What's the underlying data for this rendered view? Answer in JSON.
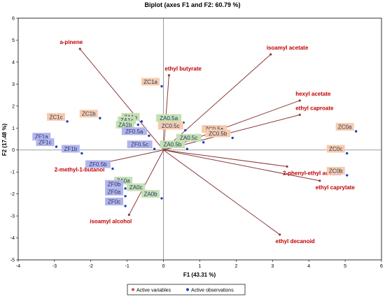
{
  "chart_data": {
    "type": "scatter",
    "title": "Biplot (axes F1 and F2: 60.79 %)",
    "xlabel": "F1 (43.31 %)",
    "ylabel": "F2 (17.48 %)",
    "xlim": [
      -4,
      6
    ],
    "ylim": [
      -5,
      6
    ],
    "xticks": [
      -4,
      -3,
      -2,
      -1,
      0,
      1,
      2,
      3,
      4,
      5,
      6
    ],
    "yticks": [
      -5,
      -4,
      -3,
      -2,
      -1,
      0,
      1,
      2,
      3,
      4,
      5,
      6
    ],
    "grid": false,
    "legend_position": "bottom",
    "legend": [
      {
        "label": "Active variables",
        "color": "#c0504d"
      },
      {
        "label": "Active observations",
        "color": "#1f3fbf"
      }
    ],
    "variables": [
      {
        "name": "a-pinene",
        "x": -2.3,
        "y": 4.6
      },
      {
        "name": "ethyl butyrate",
        "x": 0.15,
        "y": 3.4
      },
      {
        "name": "isoamyl acetate",
        "x": 2.95,
        "y": 4.35
      },
      {
        "name": "hexyl acetate",
        "x": 3.75,
        "y": 2.25
      },
      {
        "name": "ethyl caproate",
        "x": 3.75,
        "y": 1.6
      },
      {
        "name": "2-methyl-1-butanol",
        "x": -1.7,
        "y": -0.6
      },
      {
        "name": "2-phenyl-ethyl acetate",
        "x": 3.4,
        "y": -0.75
      },
      {
        "name": "ethyl caprylate",
        "x": 4.3,
        "y": -1.4
      },
      {
        "name": "isoamyl alcohol",
        "x": -0.95,
        "y": -2.95
      },
      {
        "name": "ethyl decanoid",
        "x": 3.2,
        "y": -3.85
      }
    ],
    "observations": [
      {
        "name": "ZC1a",
        "x": -0.05,
        "y": 2.9
      },
      {
        "name": "ZC1b",
        "x": -1.75,
        "y": 1.45
      },
      {
        "name": "ZC1c",
        "x": -2.65,
        "y": 1.3
      },
      {
        "name": "ZA1a",
        "x": -0.6,
        "y": 1.3
      },
      {
        "name": "ZA1c",
        "x": -0.7,
        "y": 1.15
      },
      {
        "name": "ZA1b",
        "x": -0.75,
        "y": 0.95
      },
      {
        "name": "ZF1a",
        "x": -3.05,
        "y": 0.4
      },
      {
        "name": "ZF1c",
        "x": -2.95,
        "y": 0.15
      },
      {
        "name": "ZF1b",
        "x": -2.25,
        "y": -0.15
      },
      {
        "name": "ZA0.5a",
        "x": 0.55,
        "y": 1.25
      },
      {
        "name": "ZC0.5c",
        "x": 0.6,
        "y": 0.9
      },
      {
        "name": "ZC0.5a",
        "x": 1.8,
        "y": 0.75
      },
      {
        "name": "ZC0.5b",
        "x": 1.9,
        "y": 0.55
      },
      {
        "name": "ZA0.5c",
        "x": 1.1,
        "y": 0.35
      },
      {
        "name": "ZA0.5b",
        "x": 0.65,
        "y": 0.05
      },
      {
        "name": "ZF0.5a",
        "x": -0.4,
        "y": 0.65
      },
      {
        "name": "ZF0.5c",
        "x": -0.25,
        "y": 0.05
      },
      {
        "name": "ZF0.5b",
        "x": -1.4,
        "y": -0.85
      },
      {
        "name": "ZA0a",
        "x": -0.8,
        "y": -1.6
      },
      {
        "name": "ZA0c",
        "x": -0.45,
        "y": -1.9
      },
      {
        "name": "ZA0b",
        "x": -0.05,
        "y": -2.2
      },
      {
        "name": "ZF0b",
        "x": -1.05,
        "y": -1.75
      },
      {
        "name": "ZF0a",
        "x": -1.05,
        "y": -2.1
      },
      {
        "name": "ZF0c",
        "x": -1.05,
        "y": -2.55
      },
      {
        "name": "ZC0a",
        "x": 5.3,
        "y": 0.85
      },
      {
        "name": "ZC0c",
        "x": 5.05,
        "y": -0.15
      },
      {
        "name": "ZC0b",
        "x": 5.05,
        "y": -1.15
      }
    ]
  }
}
